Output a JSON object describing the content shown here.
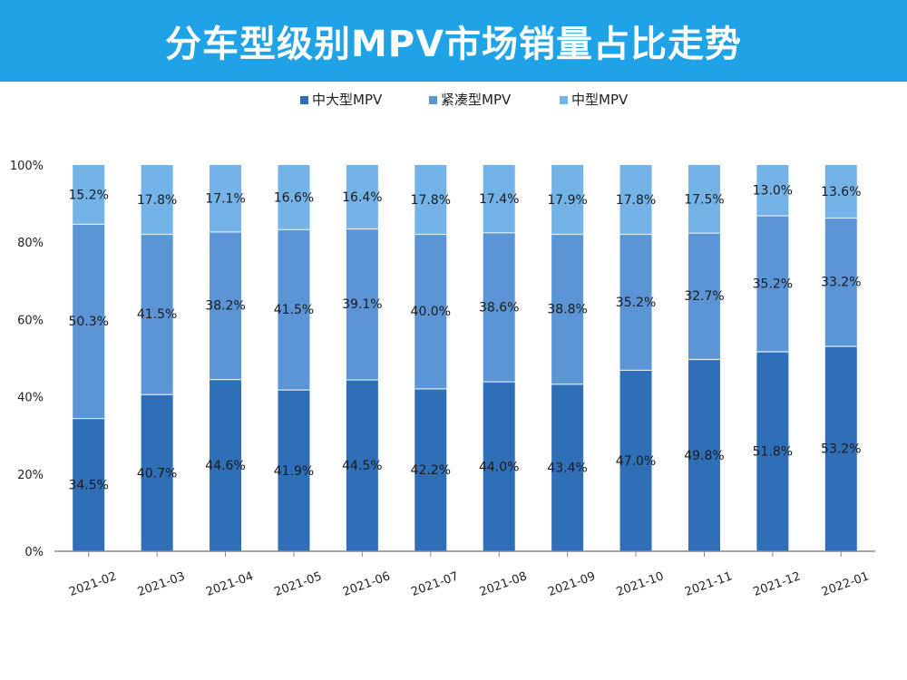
{
  "chart_data": {
    "type": "bar",
    "stacked": true,
    "percent": true,
    "title": "分车型级别MPV市场销量占比走势",
    "categories": [
      "2021-02",
      "2021-03",
      "2021-04",
      "2021-05",
      "2021-06",
      "2021-07",
      "2021-08",
      "2021-09",
      "2021-10",
      "2021-11",
      "2021-12",
      "2022-01"
    ],
    "series": [
      {
        "name": "中大型MPV",
        "color": "#2f6fb8",
        "values": [
          34.5,
          40.7,
          44.6,
          41.9,
          44.5,
          42.2,
          44.0,
          43.4,
          47.0,
          49.8,
          51.8,
          53.2
        ],
        "labels": [
          "34.5%",
          "40.7%",
          "44.6%",
          "41.9%",
          "44.5%",
          "42.2%",
          "44.0%",
          "43.4%",
          "47.0%",
          "49.8%",
          "51.8%",
          "53.2%"
        ]
      },
      {
        "name": "紧凑型MPV",
        "color": "#5b95d5",
        "values": [
          50.3,
          41.5,
          38.2,
          41.5,
          39.1,
          40.0,
          38.6,
          38.8,
          35.2,
          32.7,
          35.2,
          33.2
        ],
        "labels": [
          "50.3%",
          "41.5%",
          "38.2%",
          "41.5%",
          "39.1%",
          "40.0%",
          "38.6%",
          "38.8%",
          "35.2%",
          "32.7%",
          "35.2%",
          "33.2%"
        ]
      },
      {
        "name": "中型MPV",
        "color": "#74b3e8",
        "values": [
          15.2,
          17.8,
          17.1,
          16.6,
          16.4,
          17.8,
          17.4,
          17.9,
          17.8,
          17.5,
          13.0,
          13.6
        ],
        "labels": [
          "15.2%",
          "17.8%",
          "17.1%",
          "16.6%",
          "16.4%",
          "17.8%",
          "17.4%",
          "17.9%",
          "17.8%",
          "17.5%",
          "13.0%",
          "13.6%"
        ]
      }
    ],
    "yticks": [
      "0%",
      "20%",
      "40%",
      "60%",
      "80%",
      "100%"
    ],
    "ylim": [
      0,
      100
    ],
    "legend_position": "top",
    "grid": false
  },
  "colors": {
    "title_background": "#1fa3e6",
    "title_text": "#ffffff",
    "axis": "#888888"
  }
}
